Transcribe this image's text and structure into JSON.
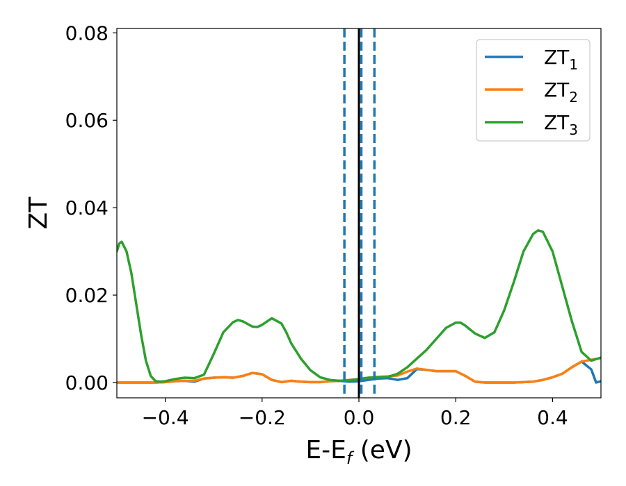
{
  "chart_data": {
    "type": "line",
    "xlabel": "E-E",
    "xlabel_sub": "f",
    "xlabel_unit": " (eV)",
    "ylabel": "ZT",
    "xlim": [
      -0.5,
      0.5
    ],
    "ylim": [
      -0.0035,
      0.081
    ],
    "xticks": [
      -0.4,
      -0.2,
      0.0,
      0.2,
      0.4
    ],
    "xtick_labels": [
      "−0.4",
      "−0.2",
      "0.0",
      "0.2",
      "0.4"
    ],
    "yticks": [
      0.0,
      0.02,
      0.04,
      0.06,
      0.08
    ],
    "ytick_labels": [
      "0.00",
      "0.02",
      "0.04",
      "0.06",
      "0.08"
    ],
    "grid": false,
    "legend": {
      "position": "top-right",
      "entries": [
        {
          "base": "ZT",
          "sub": "1"
        },
        {
          "base": "ZT",
          "sub": "2"
        },
        {
          "base": "ZT",
          "sub": "3"
        }
      ]
    },
    "vlines": [
      {
        "x": 0.0,
        "style": "solid",
        "color": "#000000"
      },
      {
        "x": -0.03,
        "style": "dashed",
        "color": "#1f77b4"
      },
      {
        "x": 0.005,
        "style": "dashed",
        "color": "#1f77b4"
      },
      {
        "x": 0.032,
        "style": "dashed",
        "color": "#1f77b4"
      }
    ],
    "series": [
      {
        "name": "ZT1",
        "color": "#1f77b4",
        "x": [
          -0.5,
          -0.48,
          -0.46,
          -0.44,
          -0.42,
          -0.4,
          -0.38,
          -0.36,
          -0.34,
          -0.32,
          -0.3,
          -0.28,
          -0.26,
          -0.24,
          -0.22,
          -0.2,
          -0.18,
          -0.16,
          -0.14,
          -0.12,
          -0.1,
          -0.08,
          -0.06,
          -0.04,
          -0.02,
          0.0,
          0.02,
          0.04,
          0.06,
          0.08,
          0.1,
          0.12,
          0.14,
          0.16,
          0.18,
          0.2,
          0.22,
          0.24,
          0.26,
          0.28,
          0.3,
          0.32,
          0.34,
          0.36,
          0.38,
          0.4,
          0.42,
          0.44,
          0.46,
          0.48,
          0.49,
          0.5
        ],
        "y": [
          0.0,
          0.0,
          0.0,
          0.0,
          0.0,
          0.0001,
          0.0003,
          0.0004,
          0.0002,
          0.0009,
          0.0011,
          0.0012,
          0.0011,
          0.0015,
          0.0022,
          0.0019,
          0.0006,
          0.0001,
          0.0004,
          0.0002,
          0.0001,
          0.0001,
          0.0003,
          0.0004,
          0.0002,
          0.0003,
          0.0006,
          0.0009,
          0.001,
          0.0006,
          0.001,
          0.0031,
          0.0029,
          0.0026,
          0.0026,
          0.0026,
          0.0015,
          0.0002,
          0.0,
          0.0,
          0.0,
          0.0,
          0.0001,
          0.0002,
          0.0006,
          0.0012,
          0.002,
          0.0035,
          0.0048,
          0.003,
          0.0,
          0.0003
        ]
      },
      {
        "name": "ZT2",
        "color": "#ff7f0e",
        "x": [
          -0.5,
          -0.48,
          -0.46,
          -0.44,
          -0.42,
          -0.4,
          -0.38,
          -0.36,
          -0.34,
          -0.32,
          -0.3,
          -0.28,
          -0.26,
          -0.24,
          -0.22,
          -0.2,
          -0.18,
          -0.16,
          -0.14,
          -0.12,
          -0.1,
          -0.08,
          -0.06,
          -0.04,
          -0.02,
          0.0,
          0.02,
          0.04,
          0.06,
          0.08,
          0.1,
          0.12,
          0.14,
          0.16,
          0.18,
          0.2,
          0.22,
          0.24,
          0.26,
          0.28,
          0.3,
          0.32,
          0.34,
          0.36,
          0.38,
          0.4,
          0.42,
          0.44,
          0.46,
          0.48,
          0.5
        ],
        "y": [
          0.0,
          0.0,
          0.0,
          0.0,
          0.0,
          0.0001,
          0.0003,
          0.0004,
          0.0004,
          0.0009,
          0.0011,
          0.0012,
          0.0011,
          0.0015,
          0.0022,
          0.0019,
          0.0006,
          0.0001,
          0.0004,
          0.0002,
          0.0001,
          0.0001,
          0.0003,
          0.0004,
          0.0006,
          0.0008,
          0.0011,
          0.0013,
          0.0014,
          0.0016,
          0.0025,
          0.0032,
          0.0029,
          0.0026,
          0.0026,
          0.0026,
          0.0015,
          0.0002,
          0.0,
          0.0,
          0.0,
          0.0,
          0.0001,
          0.0002,
          0.0006,
          0.0012,
          0.002,
          0.0035,
          0.0048,
          0.0052,
          0.0056
        ]
      },
      {
        "name": "ZT3",
        "color": "#2ca02c",
        "x": [
          -0.5,
          -0.495,
          -0.49,
          -0.48,
          -0.47,
          -0.46,
          -0.45,
          -0.44,
          -0.43,
          -0.42,
          -0.41,
          -0.4,
          -0.38,
          -0.36,
          -0.34,
          -0.32,
          -0.3,
          -0.28,
          -0.26,
          -0.25,
          -0.24,
          -0.22,
          -0.21,
          -0.2,
          -0.18,
          -0.16,
          -0.15,
          -0.14,
          -0.12,
          -0.1,
          -0.08,
          -0.06,
          -0.04,
          -0.02,
          0.0,
          0.02,
          0.04,
          0.06,
          0.08,
          0.1,
          0.12,
          0.14,
          0.16,
          0.18,
          0.2,
          0.21,
          0.22,
          0.24,
          0.26,
          0.28,
          0.3,
          0.32,
          0.34,
          0.36,
          0.37,
          0.38,
          0.4,
          0.42,
          0.44,
          0.46,
          0.48,
          0.5
        ],
        "y": [
          0.03,
          0.0318,
          0.0322,
          0.03,
          0.025,
          0.018,
          0.011,
          0.005,
          0.0015,
          0.0003,
          0.0002,
          0.0003,
          0.0008,
          0.0011,
          0.001,
          0.0018,
          0.0065,
          0.0115,
          0.0138,
          0.0143,
          0.014,
          0.0128,
          0.0127,
          0.0132,
          0.0147,
          0.0135,
          0.0115,
          0.009,
          0.0055,
          0.0028,
          0.0012,
          0.0006,
          0.0004,
          0.0005,
          0.0008,
          0.0011,
          0.0012,
          0.0013,
          0.002,
          0.0035,
          0.0055,
          0.0075,
          0.01,
          0.0125,
          0.0137,
          0.0137,
          0.013,
          0.0112,
          0.0102,
          0.0115,
          0.0165,
          0.023,
          0.03,
          0.034,
          0.0348,
          0.0345,
          0.03,
          0.022,
          0.014,
          0.007,
          0.005,
          0.0057
        ]
      }
    ]
  }
}
